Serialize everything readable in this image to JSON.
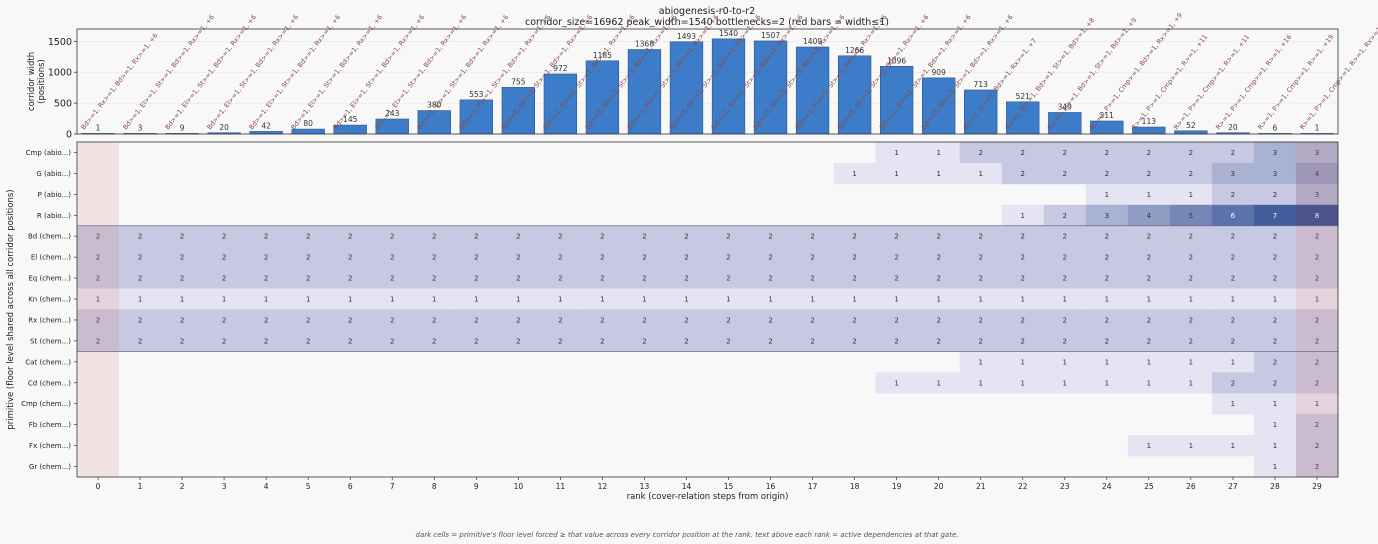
{
  "title": "abiogenesis-r0-to-r2",
  "subtitle": "corridor_size=16962  peak_width=1540  bottlenecks=2  (red bars = width≤1)",
  "footnote": "dark cells = primitive's floor level forced ≥ that value across every corridor position at the rank.  text above each rank = active dependencies at that gate.",
  "colors": {
    "bar": "#3c7cc8",
    "bottleneck": "#e08080",
    "heat_low": "#e6e4f2",
    "heat_high": "#2b4a90",
    "gate_label": "#8a4a4a"
  },
  "chart_data": [
    {
      "type": "bar",
      "ylabel": "corridor width\n(positions)",
      "ylim": [
        0,
        1700
      ],
      "yticks": [
        0,
        500,
        1000,
        1500
      ],
      "categories": [
        "0",
        "1",
        "2",
        "3",
        "4",
        "5",
        "6",
        "7",
        "8",
        "9",
        "10",
        "11",
        "12",
        "13",
        "14",
        "15",
        "16",
        "17",
        "18",
        "19",
        "20",
        "21",
        "22",
        "23",
        "24",
        "25",
        "26",
        "27",
        "28",
        "29"
      ],
      "values": [
        1,
        3,
        9,
        20,
        42,
        80,
        145,
        243,
        380,
        553,
        755,
        972,
        1185,
        1368,
        1493,
        1540,
        1507,
        1409,
        1266,
        1096,
        909,
        713,
        521,
        349,
        211,
        113,
        52,
        20,
        6,
        1
      ],
      "bottleneck_ranks": [
        0,
        29
      ],
      "gate_labels": [
        "Bd>=1, Rx>=1, Bd>=1, Rx>=1, +6",
        "Bd>=1, El>=1, St>=1, Bd>=1, Rx>=1, +6",
        "Bd>=1, El>=1, St>=1, Bd>=1, Rx>=1, +6",
        "Bd>=1, El>=1, St>=1, Bd>=1, Rx>=1, +6",
        "Bd>=1, El>=1, St>=1, Bd>=1, Rx>=1, +6",
        "Bd>=1, El>=1, St>=1, Bd>=1, Rx>=1, +6",
        "Bd>=1, El>=1, St>=1, Bd>=1, Rx>=1, +6",
        "Bd>=1, El>=1, St>=1, Bd>=1, Rx>=1, +6",
        "Bd>=1, El>=1, St>=1, Bd>=1, Rx>=1, +6",
        "Bd>=1, El>=1, St>=1, Bd>=1, Rx>=1, +6",
        "Bd>=1, El>=1, St>=1, Bd>=1, Rx>=1, +6",
        "Bd>=1, El>=1, St>=1, Bd>=1, Rx>=1, +6",
        "Bd>=1, El>=1, St>=1, Bd>=1, Rx>=1, +6",
        "Bd>=1, El>=1, St>=1, Bd>=1, Rx>=1, +6",
        "Bd>=1, El>=1, St>=1, Bd>=1, Rx>=1, +6",
        "Bd>=1, El>=1, St>=1, Bd>=1, Rx>=1, +6",
        "Bd>=1, El>=1, St>=1, Bd>=1, Rx>=1, +6",
        "Bd>=1, El>=1, St>=1, Bd>=1, Rx>=1, +6",
        "Bd>=1, El>=1, St>=1, Bd>=1, Rx>=1, +6",
        "Bd>=1, El>=1, St>=1, Bd>=1, Rx>=1, +6",
        "Bd>=1, El>=1, St>=1, Bd>=1, Rx>=1, +6",
        "R>=1, El>=1, Bd>=1, Rx>=1, +7",
        "R>=1, El>=1, Bd>=1, St>=1, Bd>=1, +8",
        "R>=1, El>=1, Bd>=1, St>=1, Bd>=1, +9",
        "R>=1, P>=1, Cmp>=1, Bd>=1, Rx>=1, +9",
        "R>=1, P>=1, Cmp>=1, R>=1, +11",
        "R>=1, P>=1, Cmp>=1, R>=1, +11",
        "R>=1, P>=1, Cmp>=1, R>=1, +16",
        "R>=1, P>=1, Cmp>=1, R>=1, +19",
        "R>=1, P>=1, Cmp>=1, R>=1, Rx>=1, +23"
      ]
    },
    {
      "type": "heatmap",
      "xlabel": "rank (cover-relation steps from origin)",
      "ylabel": "primitive (floor level shared across all corridor positions)",
      "x": [
        0,
        1,
        2,
        3,
        4,
        5,
        6,
        7,
        8,
        9,
        10,
        11,
        12,
        13,
        14,
        15,
        16,
        17,
        18,
        19,
        20,
        21,
        22,
        23,
        24,
        25,
        26,
        27,
        28,
        29
      ],
      "group_separators_after_row": [
        3,
        9
      ],
      "rows": [
        {
          "label": "Cmp  (abio...)",
          "values": [
            0,
            0,
            0,
            0,
            0,
            0,
            0,
            0,
            0,
            0,
            0,
            0,
            0,
            0,
            0,
            0,
            0,
            0,
            0,
            1,
            1,
            2,
            2,
            2,
            2,
            2,
            2,
            2,
            3,
            3
          ]
        },
        {
          "label": "G  (abio...)",
          "values": [
            0,
            0,
            0,
            0,
            0,
            0,
            0,
            0,
            0,
            0,
            0,
            0,
            0,
            0,
            0,
            0,
            0,
            0,
            1,
            1,
            1,
            1,
            2,
            2,
            2,
            2,
            2,
            3,
            3,
            4
          ]
        },
        {
          "label": "P  (abio...)",
          "values": [
            0,
            0,
            0,
            0,
            0,
            0,
            0,
            0,
            0,
            0,
            0,
            0,
            0,
            0,
            0,
            0,
            0,
            0,
            0,
            0,
            0,
            0,
            0,
            0,
            1,
            1,
            1,
            2,
            2,
            3
          ]
        },
        {
          "label": "R  (abio...)",
          "values": [
            0,
            0,
            0,
            0,
            0,
            0,
            0,
            0,
            0,
            0,
            0,
            0,
            0,
            0,
            0,
            0,
            0,
            0,
            0,
            0,
            0,
            0,
            1,
            2,
            3,
            4,
            5,
            6,
            7,
            8
          ]
        },
        {
          "label": "Bd  (chem...)",
          "values": [
            2,
            2,
            2,
            2,
            2,
            2,
            2,
            2,
            2,
            2,
            2,
            2,
            2,
            2,
            2,
            2,
            2,
            2,
            2,
            2,
            2,
            2,
            2,
            2,
            2,
            2,
            2,
            2,
            2,
            2
          ]
        },
        {
          "label": "El  (chem...)",
          "values": [
            2,
            2,
            2,
            2,
            2,
            2,
            2,
            2,
            2,
            2,
            2,
            2,
            2,
            2,
            2,
            2,
            2,
            2,
            2,
            2,
            2,
            2,
            2,
            2,
            2,
            2,
            2,
            2,
            2,
            2
          ]
        },
        {
          "label": "Eq  (chem...)",
          "values": [
            2,
            2,
            2,
            2,
            2,
            2,
            2,
            2,
            2,
            2,
            2,
            2,
            2,
            2,
            2,
            2,
            2,
            2,
            2,
            2,
            2,
            2,
            2,
            2,
            2,
            2,
            2,
            2,
            2,
            2
          ]
        },
        {
          "label": "Kn  (chem...)",
          "values": [
            1,
            1,
            1,
            1,
            1,
            1,
            1,
            1,
            1,
            1,
            1,
            1,
            1,
            1,
            1,
            1,
            1,
            1,
            1,
            1,
            1,
            1,
            1,
            1,
            1,
            1,
            1,
            1,
            1,
            1
          ]
        },
        {
          "label": "Rx  (chem...)",
          "values": [
            2,
            2,
            2,
            2,
            2,
            2,
            2,
            2,
            2,
            2,
            2,
            2,
            2,
            2,
            2,
            2,
            2,
            2,
            2,
            2,
            2,
            2,
            2,
            2,
            2,
            2,
            2,
            2,
            2,
            2
          ]
        },
        {
          "label": "St  (chem...)",
          "values": [
            2,
            2,
            2,
            2,
            2,
            2,
            2,
            2,
            2,
            2,
            2,
            2,
            2,
            2,
            2,
            2,
            2,
            2,
            2,
            2,
            2,
            2,
            2,
            2,
            2,
            2,
            2,
            2,
            2,
            2
          ]
        },
        {
          "label": "Cat  (chem...)",
          "values": [
            0,
            0,
            0,
            0,
            0,
            0,
            0,
            0,
            0,
            0,
            0,
            0,
            0,
            0,
            0,
            0,
            0,
            0,
            0,
            0,
            0,
            1,
            1,
            1,
            1,
            1,
            1,
            1,
            2,
            2
          ]
        },
        {
          "label": "Cd  (chem...)",
          "values": [
            0,
            0,
            0,
            0,
            0,
            0,
            0,
            0,
            0,
            0,
            0,
            0,
            0,
            0,
            0,
            0,
            0,
            0,
            0,
            1,
            1,
            1,
            1,
            1,
            1,
            1,
            1,
            2,
            2,
            2
          ]
        },
        {
          "label": "Cmp  (chem...)",
          "values": [
            0,
            0,
            0,
            0,
            0,
            0,
            0,
            0,
            0,
            0,
            0,
            0,
            0,
            0,
            0,
            0,
            0,
            0,
            0,
            0,
            0,
            0,
            0,
            0,
            0,
            0,
            0,
            1,
            1,
            1
          ]
        },
        {
          "label": "Fb  (chem...)",
          "values": [
            0,
            0,
            0,
            0,
            0,
            0,
            0,
            0,
            0,
            0,
            0,
            0,
            0,
            0,
            0,
            0,
            0,
            0,
            0,
            0,
            0,
            0,
            0,
            0,
            0,
            0,
            0,
            0,
            1,
            2
          ]
        },
        {
          "label": "Fx  (chem...)",
          "values": [
            0,
            0,
            0,
            0,
            0,
            0,
            0,
            0,
            0,
            0,
            0,
            0,
            0,
            0,
            0,
            0,
            0,
            0,
            0,
            0,
            0,
            0,
            0,
            0,
            0,
            1,
            1,
            1,
            1,
            2
          ]
        },
        {
          "label": "Gr  (chem...)",
          "values": [
            0,
            0,
            0,
            0,
            0,
            0,
            0,
            0,
            0,
            0,
            0,
            0,
            0,
            0,
            0,
            0,
            0,
            0,
            0,
            0,
            0,
            0,
            0,
            0,
            0,
            0,
            0,
            0,
            1,
            2
          ]
        }
      ]
    }
  ]
}
